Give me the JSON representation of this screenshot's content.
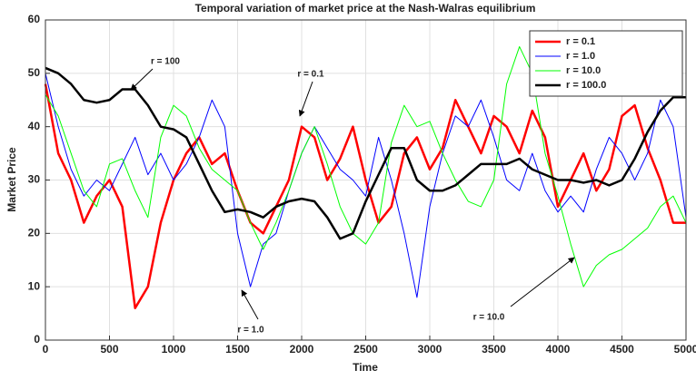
{
  "chart_data": {
    "type": "line",
    "title": "Temporal variation of market price at the Nash-Walras equilibrium",
    "xlabel": "Time",
    "ylabel": "Market Price",
    "x": [
      0,
      100,
      200,
      300,
      400,
      500,
      600,
      700,
      800,
      900,
      1000,
      1100,
      1200,
      1300,
      1400,
      1500,
      1600,
      1700,
      1800,
      1900,
      2000,
      2100,
      2200,
      2300,
      2400,
      2500,
      2600,
      2700,
      2800,
      2900,
      3000,
      3100,
      3200,
      3300,
      3400,
      3500,
      3600,
      3700,
      3800,
      3900,
      4000,
      4100,
      4200,
      4300,
      4400,
      4500,
      4600,
      4700,
      4800,
      4900,
      5000
    ],
    "series": [
      {
        "name": "r = 0.1",
        "color": "#ff0000",
        "line_width": 2.5,
        "values": [
          48,
          35,
          30,
          22,
          27,
          30,
          25,
          6,
          10,
          22,
          30,
          35,
          38,
          33,
          35,
          28,
          22,
          20,
          25,
          30,
          40,
          38,
          30,
          34,
          40,
          30,
          22,
          25,
          35,
          38,
          32,
          36,
          45,
          40,
          35,
          42,
          40,
          35,
          43,
          38,
          25,
          30,
          35,
          28,
          32,
          42,
          44,
          36,
          30,
          22,
          22
        ]
      },
      {
        "name": "r = 1.0",
        "color": "#0000ff",
        "line_width": 1,
        "values": [
          50,
          40,
          32,
          27,
          30,
          28,
          33,
          38,
          31,
          35,
          30,
          33,
          38,
          45,
          40,
          20,
          10,
          18,
          20,
          28,
          35,
          40,
          36,
          32,
          30,
          27,
          38,
          30,
          20,
          8,
          25,
          35,
          42,
          40,
          45,
          38,
          30,
          28,
          35,
          28,
          24,
          27,
          24,
          32,
          38,
          35,
          30,
          35,
          45,
          40,
          23
        ]
      },
      {
        "name": "r = 10.0",
        "color": "#00ff00",
        "line_width": 1,
        "values": [
          46,
          42,
          35,
          28,
          25,
          33,
          34,
          28,
          23,
          38,
          44,
          42,
          36,
          32,
          30,
          28,
          22,
          17,
          22,
          28,
          35,
          40,
          33,
          25,
          20,
          18,
          22,
          37,
          44,
          40,
          41,
          35,
          30,
          26,
          25,
          30,
          48,
          55,
          50,
          35,
          27,
          18,
          10,
          14,
          16,
          17,
          19,
          21,
          25,
          27,
          22
        ]
      },
      {
        "name": "r = 100.0",
        "color": "#000000",
        "line_width": 2.5,
        "values": [
          51,
          50,
          48,
          45,
          44.5,
          45,
          47,
          47,
          44,
          40,
          39.5,
          38,
          33,
          28,
          24,
          24.5,
          24,
          23,
          25,
          26,
          26.5,
          26,
          23,
          19,
          20,
          26,
          31,
          36,
          36,
          30,
          28,
          28,
          29,
          31,
          33,
          33,
          33,
          34,
          32,
          31,
          30,
          30,
          29.5,
          30,
          29,
          30,
          34,
          39,
          43,
          45.5,
          45.5
        ]
      }
    ],
    "annotations": [
      "r = 100",
      "r = 0.1",
      "r = 1.0",
      "r = 10.0"
    ],
    "xlim": [
      0,
      5000
    ],
    "xticks": [
      0,
      500,
      1000,
      1500,
      2000,
      2500,
      3000,
      3500,
      4000,
      4500,
      5000
    ],
    "ylim": [
      0,
      60
    ],
    "yticks": [
      0,
      10,
      20,
      30,
      40,
      50,
      60
    ],
    "grid": true,
    "legend": "upper right"
  }
}
